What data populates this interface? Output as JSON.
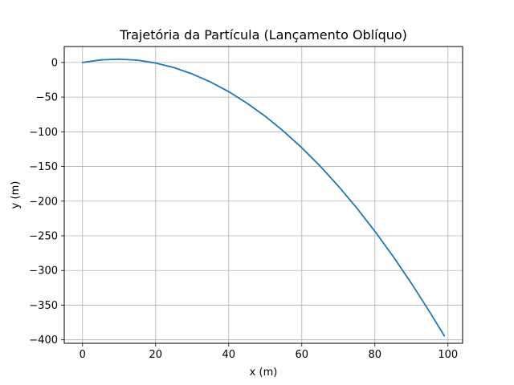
{
  "chart_data": {
    "type": "line",
    "title": "Trajetória da Partícula (Lançamento Oblíquo)",
    "xlabel": "x (m)",
    "ylabel": "y (m)",
    "xlim": [
      -5,
      104
    ],
    "ylim": [
      -405,
      23
    ],
    "xticks": [
      0,
      20,
      40,
      60,
      80,
      100
    ],
    "yticks": [
      0,
      -50,
      -100,
      -150,
      -200,
      -250,
      -300,
      -350,
      -400
    ],
    "xtick_labels": [
      "0",
      "20",
      "40",
      "60",
      "80",
      "100"
    ],
    "ytick_labels": [
      "0",
      "−50",
      "−100",
      "−150",
      "−200",
      "−250",
      "−300",
      "−350",
      "−400"
    ],
    "grid": true,
    "series": [
      {
        "color": "#1f77b4",
        "x": [
          0,
          5,
          10,
          15,
          20,
          25,
          30,
          35,
          40,
          45,
          50,
          55,
          60,
          65,
          70,
          75,
          80,
          85,
          90,
          95,
          99
        ],
        "y": [
          0,
          3.7,
          4.8,
          3.3,
          -0.8,
          -7.4,
          -16.5,
          -28.1,
          -42.1,
          -58.7,
          -77.6,
          -99.1,
          -123.0,
          -149.4,
          -178.3,
          -209.6,
          -243.5,
          -279.8,
          -318.6,
          -359.8,
          -394.3
        ]
      }
    ]
  }
}
